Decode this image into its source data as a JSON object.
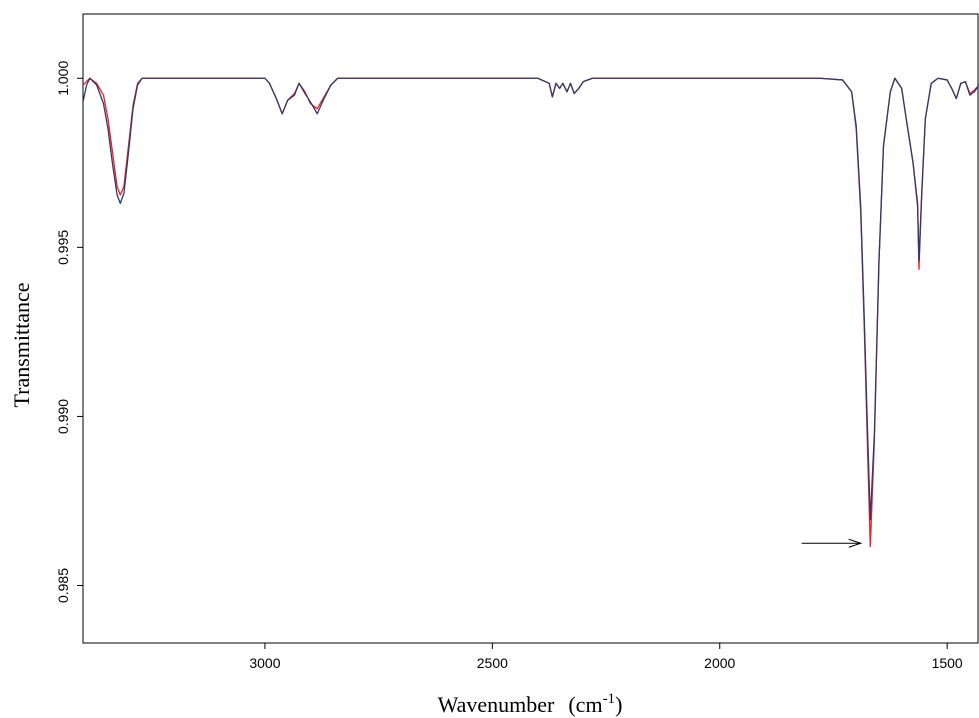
{
  "chart_data": {
    "type": "line",
    "title": "",
    "xlabel": "Wavenumber",
    "xlabel_unit_prefix": "(cm",
    "xlabel_unit_exp": "-1",
    "xlabel_unit_suffix": ")",
    "ylabel": "Transmittance",
    "xlim": [
      3400,
      1430
    ],
    "ylim": [
      0.9833,
      1.0019
    ],
    "x_reversed": true,
    "grid": false,
    "legend": "none",
    "xticks": [
      3000,
      2500,
      2000,
      1500
    ],
    "xtick_labels": [
      "3000",
      "2500",
      "2000",
      "1500"
    ],
    "yticks": [
      0.985,
      0.99,
      0.995,
      1.0
    ],
    "ytick_labels": [
      "0.985",
      "0.990",
      "0.995",
      "1.000"
    ],
    "series": [
      {
        "color": "#ee1c25",
        "points": [
          [
            3400,
            0.9998
          ],
          [
            3385,
            1.0
          ],
          [
            3370,
            0.99985
          ],
          [
            3355,
            0.9995
          ],
          [
            3345,
            0.9988
          ],
          [
            3335,
            0.9978
          ],
          [
            3325,
            0.9968
          ],
          [
            3318,
            0.99655
          ],
          [
            3310,
            0.9968
          ],
          [
            3300,
            0.998
          ],
          [
            3290,
            0.9992
          ],
          [
            3280,
            0.99985
          ],
          [
            3270,
            1.0
          ],
          [
            3100,
            1.0
          ],
          [
            3000,
            1.0
          ],
          [
            2990,
            0.99985
          ],
          [
            2975,
            0.9994
          ],
          [
            2962,
            0.99895
          ],
          [
            2950,
            0.99935
          ],
          [
            2935,
            0.99955
          ],
          [
            2925,
            0.99985
          ],
          [
            2912,
            0.9996
          ],
          [
            2900,
            0.99925
          ],
          [
            2885,
            0.9991
          ],
          [
            2870,
            0.99945
          ],
          [
            2855,
            0.9998
          ],
          [
            2840,
            1.0
          ],
          [
            2400,
            1.0
          ],
          [
            2375,
            0.99985
          ],
          [
            2368,
            0.99945
          ],
          [
            2360,
            0.99985
          ],
          [
            2352,
            0.9997
          ],
          [
            2345,
            0.99985
          ],
          [
            2336,
            0.9996
          ],
          [
            2328,
            0.99985
          ],
          [
            2320,
            0.99955
          ],
          [
            2310,
            0.9997
          ],
          [
            2300,
            0.9999
          ],
          [
            2280,
            1.0
          ],
          [
            1780,
            1.0
          ],
          [
            1730,
            0.99995
          ],
          [
            1710,
            0.9996
          ],
          [
            1700,
            0.9985
          ],
          [
            1690,
            0.996
          ],
          [
            1682,
            0.9925
          ],
          [
            1676,
            0.9895
          ],
          [
            1669,
            0.98615
          ],
          [
            1660,
            0.9893
          ],
          [
            1650,
            0.9945
          ],
          [
            1640,
            0.998
          ],
          [
            1625,
            0.9996
          ],
          [
            1615,
            1.0
          ],
          [
            1600,
            0.9997
          ],
          [
            1590,
            0.9988
          ],
          [
            1575,
            0.9975
          ],
          [
            1565,
            0.9962
          ],
          [
            1562,
            0.99435
          ],
          [
            1556,
            0.9965
          ],
          [
            1548,
            0.9988
          ],
          [
            1535,
            0.99985
          ],
          [
            1520,
            1.0
          ],
          [
            1500,
            0.99995
          ],
          [
            1490,
            0.9997
          ],
          [
            1480,
            0.9994
          ],
          [
            1470,
            0.99985
          ],
          [
            1460,
            0.9999
          ],
          [
            1450,
            0.99955
          ],
          [
            1440,
            0.99965
          ],
          [
            1430,
            0.9998
          ]
        ]
      },
      {
        "color": "#2e3a6e",
        "points": [
          [
            3400,
            0.9993
          ],
          [
            3392,
            0.9998
          ],
          [
            3385,
            1.0
          ],
          [
            3370,
            0.9998
          ],
          [
            3355,
            0.99925
          ],
          [
            3345,
            0.9985
          ],
          [
            3335,
            0.99745
          ],
          [
            3325,
            0.99655
          ],
          [
            3318,
            0.9963
          ],
          [
            3310,
            0.9966
          ],
          [
            3300,
            0.9978
          ],
          [
            3290,
            0.9991
          ],
          [
            3280,
            0.9998
          ],
          [
            3270,
            1.0
          ],
          [
            3100,
            1.0
          ],
          [
            3000,
            1.0
          ],
          [
            2990,
            0.99985
          ],
          [
            2975,
            0.9994
          ],
          [
            2962,
            0.99895
          ],
          [
            2950,
            0.99935
          ],
          [
            2935,
            0.9995
          ],
          [
            2925,
            0.99985
          ],
          [
            2912,
            0.99955
          ],
          [
            2900,
            0.9993
          ],
          [
            2885,
            0.99895
          ],
          [
            2870,
            0.9994
          ],
          [
            2855,
            0.9998
          ],
          [
            2840,
            1.0
          ],
          [
            2400,
            1.0
          ],
          [
            2375,
            0.99985
          ],
          [
            2368,
            0.99945
          ],
          [
            2360,
            0.99985
          ],
          [
            2352,
            0.9997
          ],
          [
            2345,
            0.99985
          ],
          [
            2336,
            0.9996
          ],
          [
            2328,
            0.99985
          ],
          [
            2320,
            0.99955
          ],
          [
            2310,
            0.9997
          ],
          [
            2300,
            0.9999
          ],
          [
            2280,
            1.0
          ],
          [
            1780,
            1.0
          ],
          [
            1730,
            0.99995
          ],
          [
            1710,
            0.9996
          ],
          [
            1700,
            0.9986
          ],
          [
            1690,
            0.9962
          ],
          [
            1682,
            0.9928
          ],
          [
            1676,
            0.99
          ],
          [
            1669,
            0.98695
          ],
          [
            1660,
            0.9895
          ],
          [
            1650,
            0.9946
          ],
          [
            1640,
            0.998
          ],
          [
            1625,
            0.9996
          ],
          [
            1615,
            1.0
          ],
          [
            1600,
            0.9997
          ],
          [
            1590,
            0.9988
          ],
          [
            1575,
            0.9975
          ],
          [
            1565,
            0.9963
          ],
          [
            1562,
            0.9946
          ],
          [
            1556,
            0.9966
          ],
          [
            1548,
            0.9988
          ],
          [
            1535,
            0.99985
          ],
          [
            1520,
            1.0
          ],
          [
            1500,
            0.99995
          ],
          [
            1490,
            0.9997
          ],
          [
            1480,
            0.9994
          ],
          [
            1470,
            0.99985
          ],
          [
            1460,
            0.9999
          ],
          [
            1450,
            0.9995
          ],
          [
            1440,
            0.9996
          ],
          [
            1430,
            0.9998
          ]
        ]
      }
    ],
    "annotations": [
      {
        "type": "arrow",
        "from": [
          1820,
          0.98625
        ],
        "to": [
          1690,
          0.98625
        ]
      }
    ]
  }
}
